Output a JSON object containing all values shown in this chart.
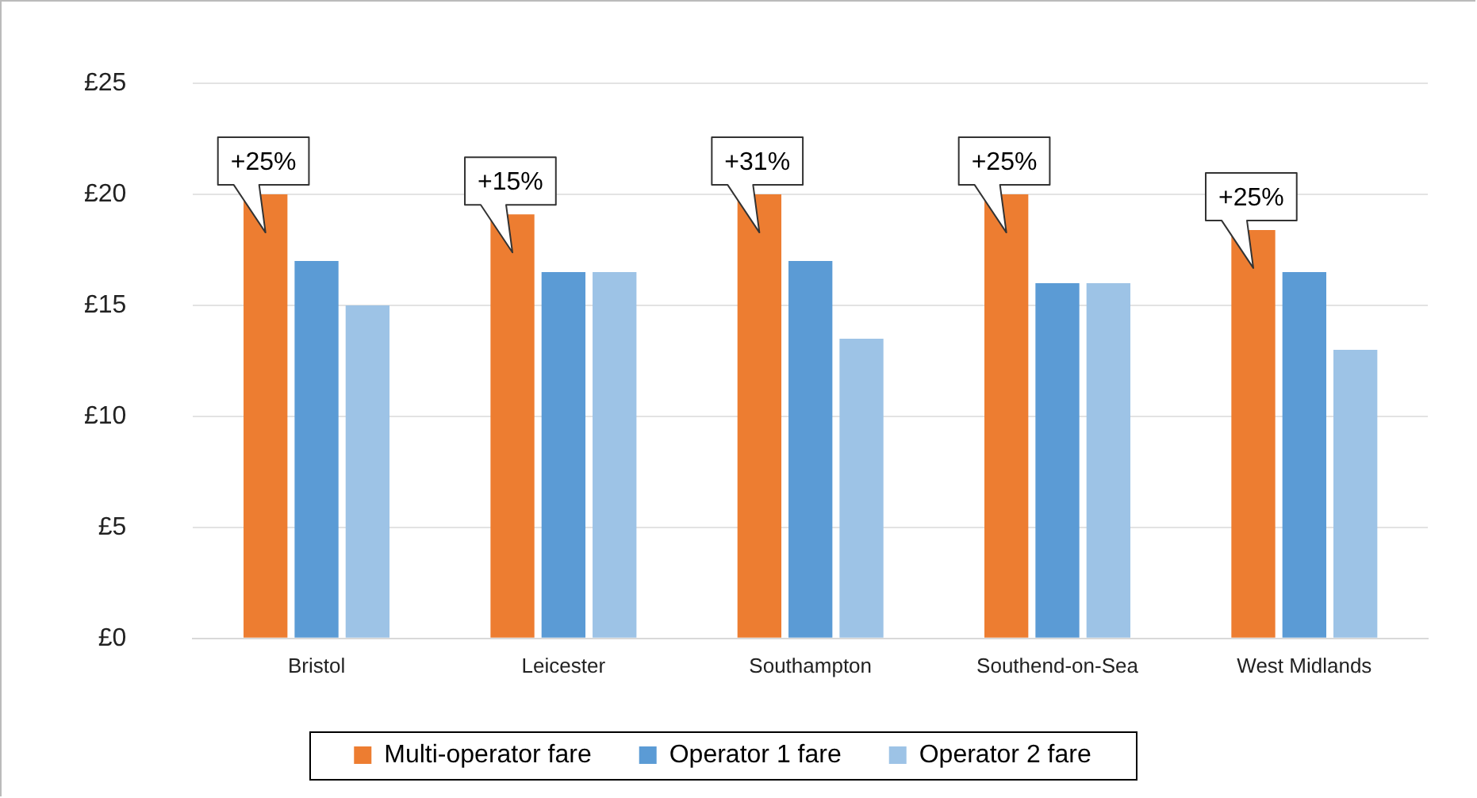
{
  "chart_data": {
    "type": "bar",
    "categories": [
      "Bristol",
      "Leicester",
      "Southampton",
      "Southend-on-Sea",
      "West Midlands"
    ],
    "series": [
      {
        "name": "Multi-operator fare",
        "color": "#ed7d31",
        "values": [
          20,
          19.1,
          20,
          20,
          18.4
        ]
      },
      {
        "name": "Operator 1 fare",
        "color": "#5b9bd5",
        "values": [
          17,
          16.5,
          17,
          16,
          16.5
        ]
      },
      {
        "name": "Operator 2 fare",
        "color": "#9dc3e6",
        "values": [
          15,
          16.5,
          13.5,
          16,
          13
        ]
      }
    ],
    "ylim": [
      0,
      25
    ],
    "yticks": [
      {
        "value": 0,
        "label": "£0"
      },
      {
        "value": 5,
        "label": "£5"
      },
      {
        "value": 10,
        "label": "£10"
      },
      {
        "value": 15,
        "label": "£15"
      },
      {
        "value": 20,
        "label": "£20"
      },
      {
        "value": 25,
        "label": "£25"
      }
    ],
    "annotations": [
      "+25%",
      "+15%",
      "+31%",
      "+25%",
      "+25%"
    ],
    "grid": "y",
    "legend": "bottom"
  }
}
